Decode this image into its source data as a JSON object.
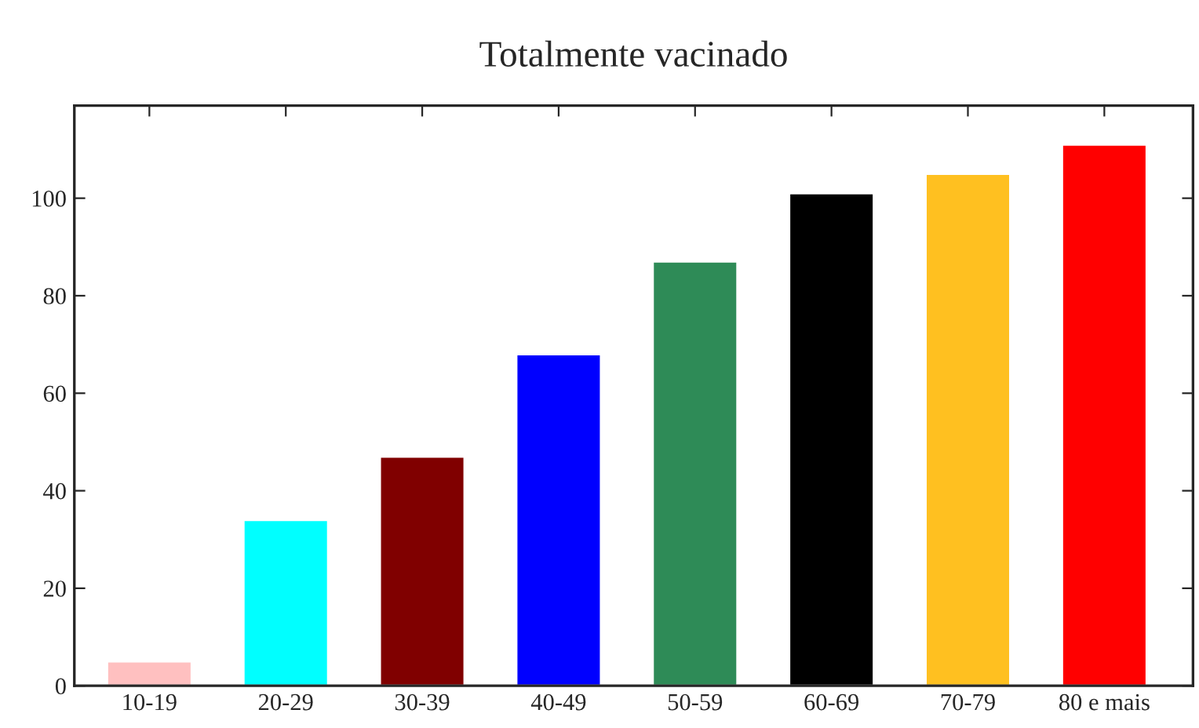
{
  "chart_data": {
    "type": "bar",
    "title": "Totalmente vacinado",
    "categories": [
      "10-19",
      "20-29",
      "30-39",
      "40-49",
      "50-59",
      "60-69",
      "70-79",
      "80 e mais"
    ],
    "values": [
      5,
      34,
      47,
      68,
      87,
      101,
      105,
      111
    ],
    "colors": [
      "#ffc0c0",
      "#00ffff",
      "#800000",
      "#0000ff",
      "#2e8b57",
      "#000000",
      "#ffc020",
      "#ff0000"
    ],
    "ylim": [
      0,
      119
    ],
    "yticks": [
      0,
      20,
      40,
      60,
      80,
      100
    ],
    "grid": false,
    "legend": false
  }
}
